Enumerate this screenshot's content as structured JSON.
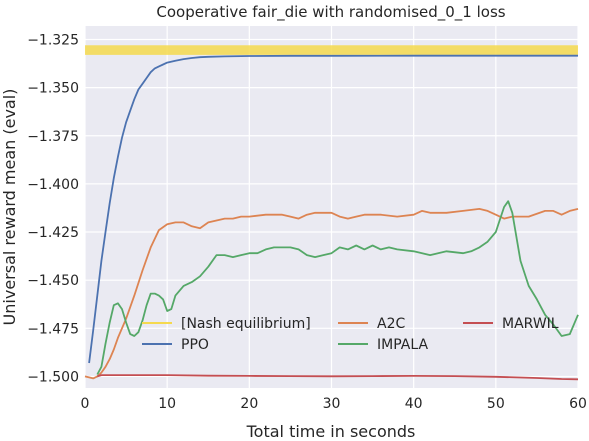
{
  "chart_data": {
    "type": "line",
    "title": "Cooperative fair_die with randomised_0_1 loss",
    "xlabel": "Total time in seconds",
    "ylabel": "Universal reward mean (eval)",
    "xlim": [
      0,
      60
    ],
    "ylim": [
      -1.506,
      -1.318
    ],
    "xticks": [
      0,
      10,
      20,
      30,
      40,
      50,
      60
    ],
    "xtick_labels": [
      "0",
      "10",
      "20",
      "30",
      "40",
      "50",
      "60"
    ],
    "yticks": [
      -1.5,
      -1.475,
      -1.45,
      -1.425,
      -1.4,
      -1.375,
      -1.35,
      -1.325
    ],
    "ytick_labels": [
      "−1.500",
      "−1.475",
      "−1.450",
      "−1.425",
      "−1.400",
      "−1.375",
      "−1.350",
      "−1.325"
    ],
    "grid": true,
    "legend_placement": "lower-center",
    "legend_columns": 3,
    "series": [
      {
        "name": "[Nash equilibrium]",
        "color": "#f5d94e",
        "kind": "band",
        "y_band": [
          -1.333,
          -1.328
        ],
        "x_range": [
          0,
          60
        ]
      },
      {
        "name": "PPO",
        "color": "#4c72b0",
        "kind": "line",
        "points": [
          [
            0.5,
            -1.493
          ],
          [
            1,
            -1.476
          ],
          [
            1.5,
            -1.458
          ],
          [
            2,
            -1.44
          ],
          [
            2.5,
            -1.425
          ],
          [
            3,
            -1.41
          ],
          [
            3.5,
            -1.397
          ],
          [
            4,
            -1.386
          ],
          [
            4.5,
            -1.376
          ],
          [
            5,
            -1.368
          ],
          [
            5.5,
            -1.362
          ],
          [
            6,
            -1.356
          ],
          [
            6.5,
            -1.351
          ],
          [
            7,
            -1.348
          ],
          [
            7.5,
            -1.345
          ],
          [
            8,
            -1.342
          ],
          [
            8.5,
            -1.34
          ],
          [
            9,
            -1.339
          ],
          [
            9.5,
            -1.338
          ],
          [
            10,
            -1.337
          ],
          [
            11,
            -1.336
          ],
          [
            12,
            -1.3352
          ],
          [
            13,
            -1.3346
          ],
          [
            14,
            -1.3342
          ],
          [
            15,
            -1.334
          ],
          [
            17,
            -1.3338
          ],
          [
            20,
            -1.3336
          ],
          [
            25,
            -1.3335
          ],
          [
            30,
            -1.3335
          ],
          [
            40,
            -1.3334
          ],
          [
            50,
            -1.3334
          ],
          [
            60,
            -1.3334
          ]
        ]
      },
      {
        "name": "A2C",
        "color": "#dd8452",
        "kind": "line",
        "points": [
          [
            0,
            -1.5
          ],
          [
            1,
            -1.501
          ],
          [
            1.5,
            -1.5
          ],
          [
            2,
            -1.498
          ],
          [
            2.5,
            -1.495
          ],
          [
            3,
            -1.491
          ],
          [
            3.5,
            -1.486
          ],
          [
            4,
            -1.48
          ],
          [
            5,
            -1.47
          ],
          [
            6,
            -1.458
          ],
          [
            7,
            -1.445
          ],
          [
            8,
            -1.433
          ],
          [
            9,
            -1.424
          ],
          [
            10,
            -1.421
          ],
          [
            11,
            -1.42
          ],
          [
            12,
            -1.42
          ],
          [
            13,
            -1.422
          ],
          [
            14,
            -1.423
          ],
          [
            15,
            -1.42
          ],
          [
            16,
            -1.419
          ],
          [
            17,
            -1.418
          ],
          [
            18,
            -1.418
          ],
          [
            19,
            -1.417
          ],
          [
            20,
            -1.417
          ],
          [
            22,
            -1.416
          ],
          [
            24,
            -1.416
          ],
          [
            25,
            -1.417
          ],
          [
            26,
            -1.418
          ],
          [
            27,
            -1.416
          ],
          [
            28,
            -1.415
          ],
          [
            30,
            -1.415
          ],
          [
            31,
            -1.417
          ],
          [
            32,
            -1.418
          ],
          [
            33,
            -1.417
          ],
          [
            34,
            -1.416
          ],
          [
            36,
            -1.416
          ],
          [
            38,
            -1.417
          ],
          [
            40,
            -1.416
          ],
          [
            41,
            -1.414
          ],
          [
            42,
            -1.415
          ],
          [
            44,
            -1.415
          ],
          [
            46,
            -1.414
          ],
          [
            48,
            -1.413
          ],
          [
            49,
            -1.414
          ],
          [
            50,
            -1.416
          ],
          [
            51,
            -1.418
          ],
          [
            52,
            -1.417
          ],
          [
            54,
            -1.417
          ],
          [
            56,
            -1.414
          ],
          [
            57,
            -1.414
          ],
          [
            58,
            -1.416
          ],
          [
            59,
            -1.414
          ],
          [
            60,
            -1.413
          ]
        ]
      },
      {
        "name": "IMPALA",
        "color": "#55a868",
        "kind": "line",
        "points": [
          [
            1.5,
            -1.499
          ],
          [
            2,
            -1.495
          ],
          [
            2.5,
            -1.483
          ],
          [
            3,
            -1.472
          ],
          [
            3.5,
            -1.463
          ],
          [
            4,
            -1.462
          ],
          [
            4.5,
            -1.465
          ],
          [
            5,
            -1.472
          ],
          [
            5.5,
            -1.478
          ],
          [
            6,
            -1.479
          ],
          [
            6.5,
            -1.477
          ],
          [
            7,
            -1.471
          ],
          [
            7.5,
            -1.463
          ],
          [
            8,
            -1.457
          ],
          [
            8.5,
            -1.457
          ],
          [
            9,
            -1.458
          ],
          [
            9.5,
            -1.46
          ],
          [
            10,
            -1.466
          ],
          [
            10.5,
            -1.465
          ],
          [
            11,
            -1.458
          ],
          [
            12,
            -1.453
          ],
          [
            13,
            -1.451
          ],
          [
            14,
            -1.448
          ],
          [
            15,
            -1.443
          ],
          [
            16,
            -1.437
          ],
          [
            17,
            -1.437
          ],
          [
            18,
            -1.438
          ],
          [
            19,
            -1.437
          ],
          [
            20,
            -1.436
          ],
          [
            21,
            -1.436
          ],
          [
            22,
            -1.434
          ],
          [
            23,
            -1.433
          ],
          [
            24,
            -1.433
          ],
          [
            25,
            -1.433
          ],
          [
            26,
            -1.434
          ],
          [
            27,
            -1.437
          ],
          [
            28,
            -1.438
          ],
          [
            29,
            -1.437
          ],
          [
            30,
            -1.436
          ],
          [
            31,
            -1.433
          ],
          [
            32,
            -1.434
          ],
          [
            33,
            -1.432
          ],
          [
            34,
            -1.434
          ],
          [
            35,
            -1.432
          ],
          [
            36,
            -1.434
          ],
          [
            37,
            -1.433
          ],
          [
            38,
            -1.434
          ],
          [
            40,
            -1.435
          ],
          [
            42,
            -1.437
          ],
          [
            44,
            -1.435
          ],
          [
            46,
            -1.436
          ],
          [
            47,
            -1.435
          ],
          [
            48,
            -1.433
          ],
          [
            49,
            -1.43
          ],
          [
            50,
            -1.425
          ],
          [
            51,
            -1.412
          ],
          [
            51.5,
            -1.409
          ],
          [
            52,
            -1.415
          ],
          [
            53,
            -1.44
          ],
          [
            54,
            -1.453
          ],
          [
            55,
            -1.46
          ],
          [
            56,
            -1.468
          ],
          [
            57,
            -1.473
          ],
          [
            58,
            -1.479
          ],
          [
            59,
            -1.478
          ],
          [
            60,
            -1.468
          ]
        ]
      },
      {
        "name": "MARWIL",
        "color": "#c44e52",
        "kind": "line",
        "points": [
          [
            1.5,
            -1.5
          ],
          [
            2,
            -1.4993
          ],
          [
            5,
            -1.4993
          ],
          [
            10,
            -1.4993
          ],
          [
            15,
            -1.4996
          ],
          [
            20,
            -1.4997
          ],
          [
            25,
            -1.4998
          ],
          [
            30,
            -1.4999
          ],
          [
            35,
            -1.4998
          ],
          [
            40,
            -1.4997
          ],
          [
            45,
            -1.4998
          ],
          [
            50,
            -1.5002
          ],
          [
            55,
            -1.5008
          ],
          [
            58,
            -1.5013
          ],
          [
            60,
            -1.5015
          ]
        ]
      }
    ]
  }
}
